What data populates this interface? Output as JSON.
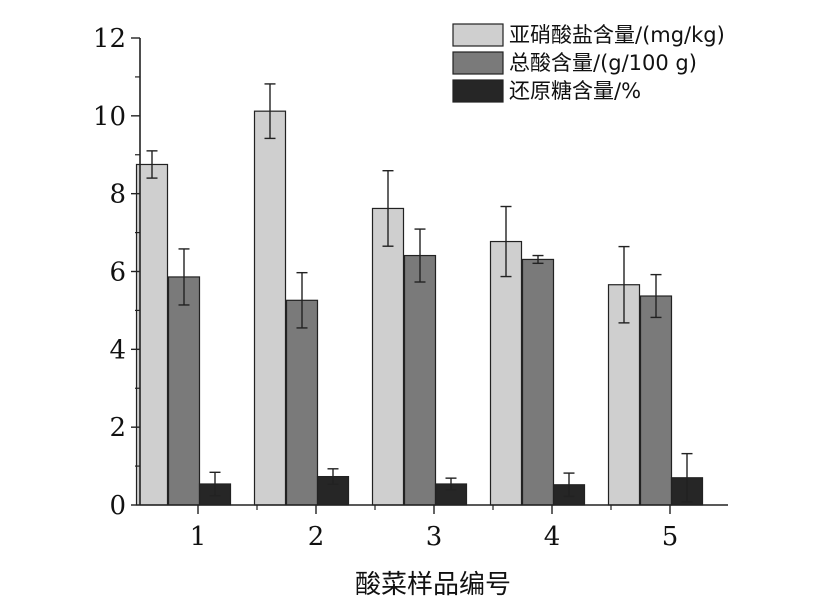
{
  "chart_data": {
    "type": "bar",
    "xlabel": "酸菜样品编号",
    "ylabel": "",
    "categories": [
      "1",
      "2",
      "3",
      "4",
      "5"
    ],
    "ylim": [
      0,
      12
    ],
    "yticks": [
      0,
      2,
      4,
      6,
      8,
      10,
      12
    ],
    "grid": false,
    "legend_position": "top-right",
    "series": [
      {
        "name": "亚硝酸盐含量/(mg/kg)",
        "color": "#cfcfcf",
        "values": [
          8.75,
          10.12,
          7.62,
          6.77,
          5.66
        ],
        "errors": [
          0.35,
          0.7,
          0.97,
          0.9,
          0.98
        ]
      },
      {
        "name": "总酸含量/(g/100 g)",
        "color": "#7a7a7a",
        "values": [
          5.86,
          5.26,
          6.41,
          6.31,
          5.37
        ],
        "errors": [
          0.72,
          0.71,
          0.68,
          0.1,
          0.55
        ]
      },
      {
        "name": "还原糖含量/%",
        "color": "#262626",
        "values": [
          0.54,
          0.73,
          0.54,
          0.52,
          0.7
        ],
        "errors": [
          0.3,
          0.2,
          0.15,
          0.3,
          0.62
        ]
      }
    ]
  }
}
